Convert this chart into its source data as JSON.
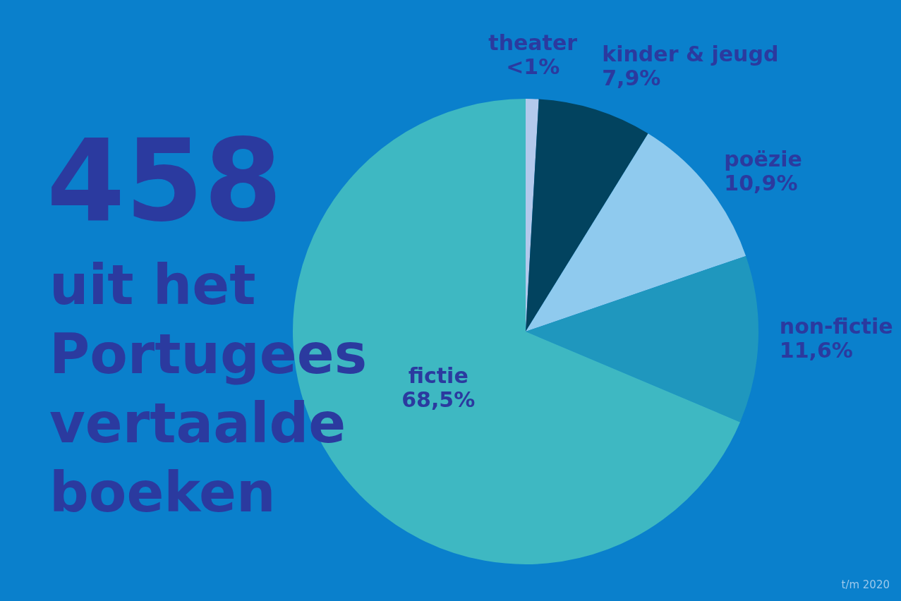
{
  "chart_data": {
    "type": "pie",
    "title": "458",
    "subtitle": "uit het Portugees vertaalde boeken",
    "categories": [
      "theater",
      "kinder & jeugd",
      "poëzie",
      "non-fictie",
      "fictie"
    ],
    "values": [
      0.9,
      7.9,
      10.9,
      11.6,
      68.5
    ],
    "value_labels": [
      "<1%",
      "7,9%",
      "10,9%",
      "11,6%",
      "68,5%"
    ],
    "colors": [
      "#b3c9ec",
      "#02435f",
      "#8fcaee",
      "#1f97be",
      "#3eb8c2"
    ],
    "legend": false,
    "annotations": [
      "t/m 2020"
    ]
  }
}
